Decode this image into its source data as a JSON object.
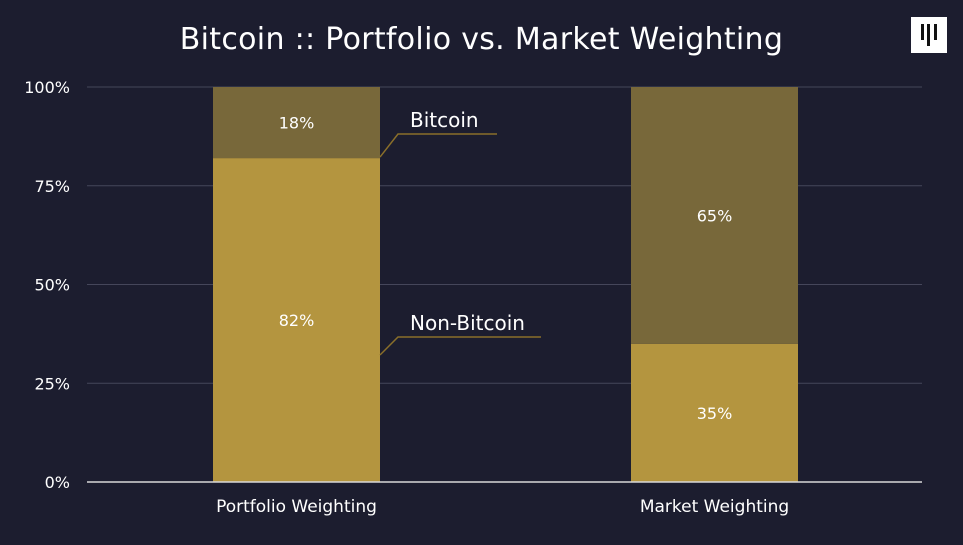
{
  "chart_data": {
    "type": "bar",
    "stacked": true,
    "title": "Bitcoin :: Portfolio vs. Market Weighting",
    "categories": [
      "Portfolio Weighting",
      "Market Weighting"
    ],
    "series": [
      {
        "name": "Non-Bitcoin",
        "values": [
          82,
          35
        ],
        "labels": [
          "82%",
          "35%"
        ],
        "color": "#b4953f"
      },
      {
        "name": "Bitcoin",
        "values": [
          18,
          65
        ],
        "labels": [
          "18%",
          "65%"
        ],
        "color": "#78683a"
      }
    ],
    "ylim": [
      0,
      100
    ],
    "yticks": [
      0,
      25,
      50,
      75,
      100
    ],
    "ytick_labels": [
      "0%",
      "25%",
      "50%",
      "75%",
      "100%"
    ],
    "grid": true,
    "legend": "inline callouts beside first bar",
    "background": "#1c1d2f",
    "callout_color": "#8a6f2a"
  },
  "logo": {
    "icon": "three-bars-logo"
  }
}
